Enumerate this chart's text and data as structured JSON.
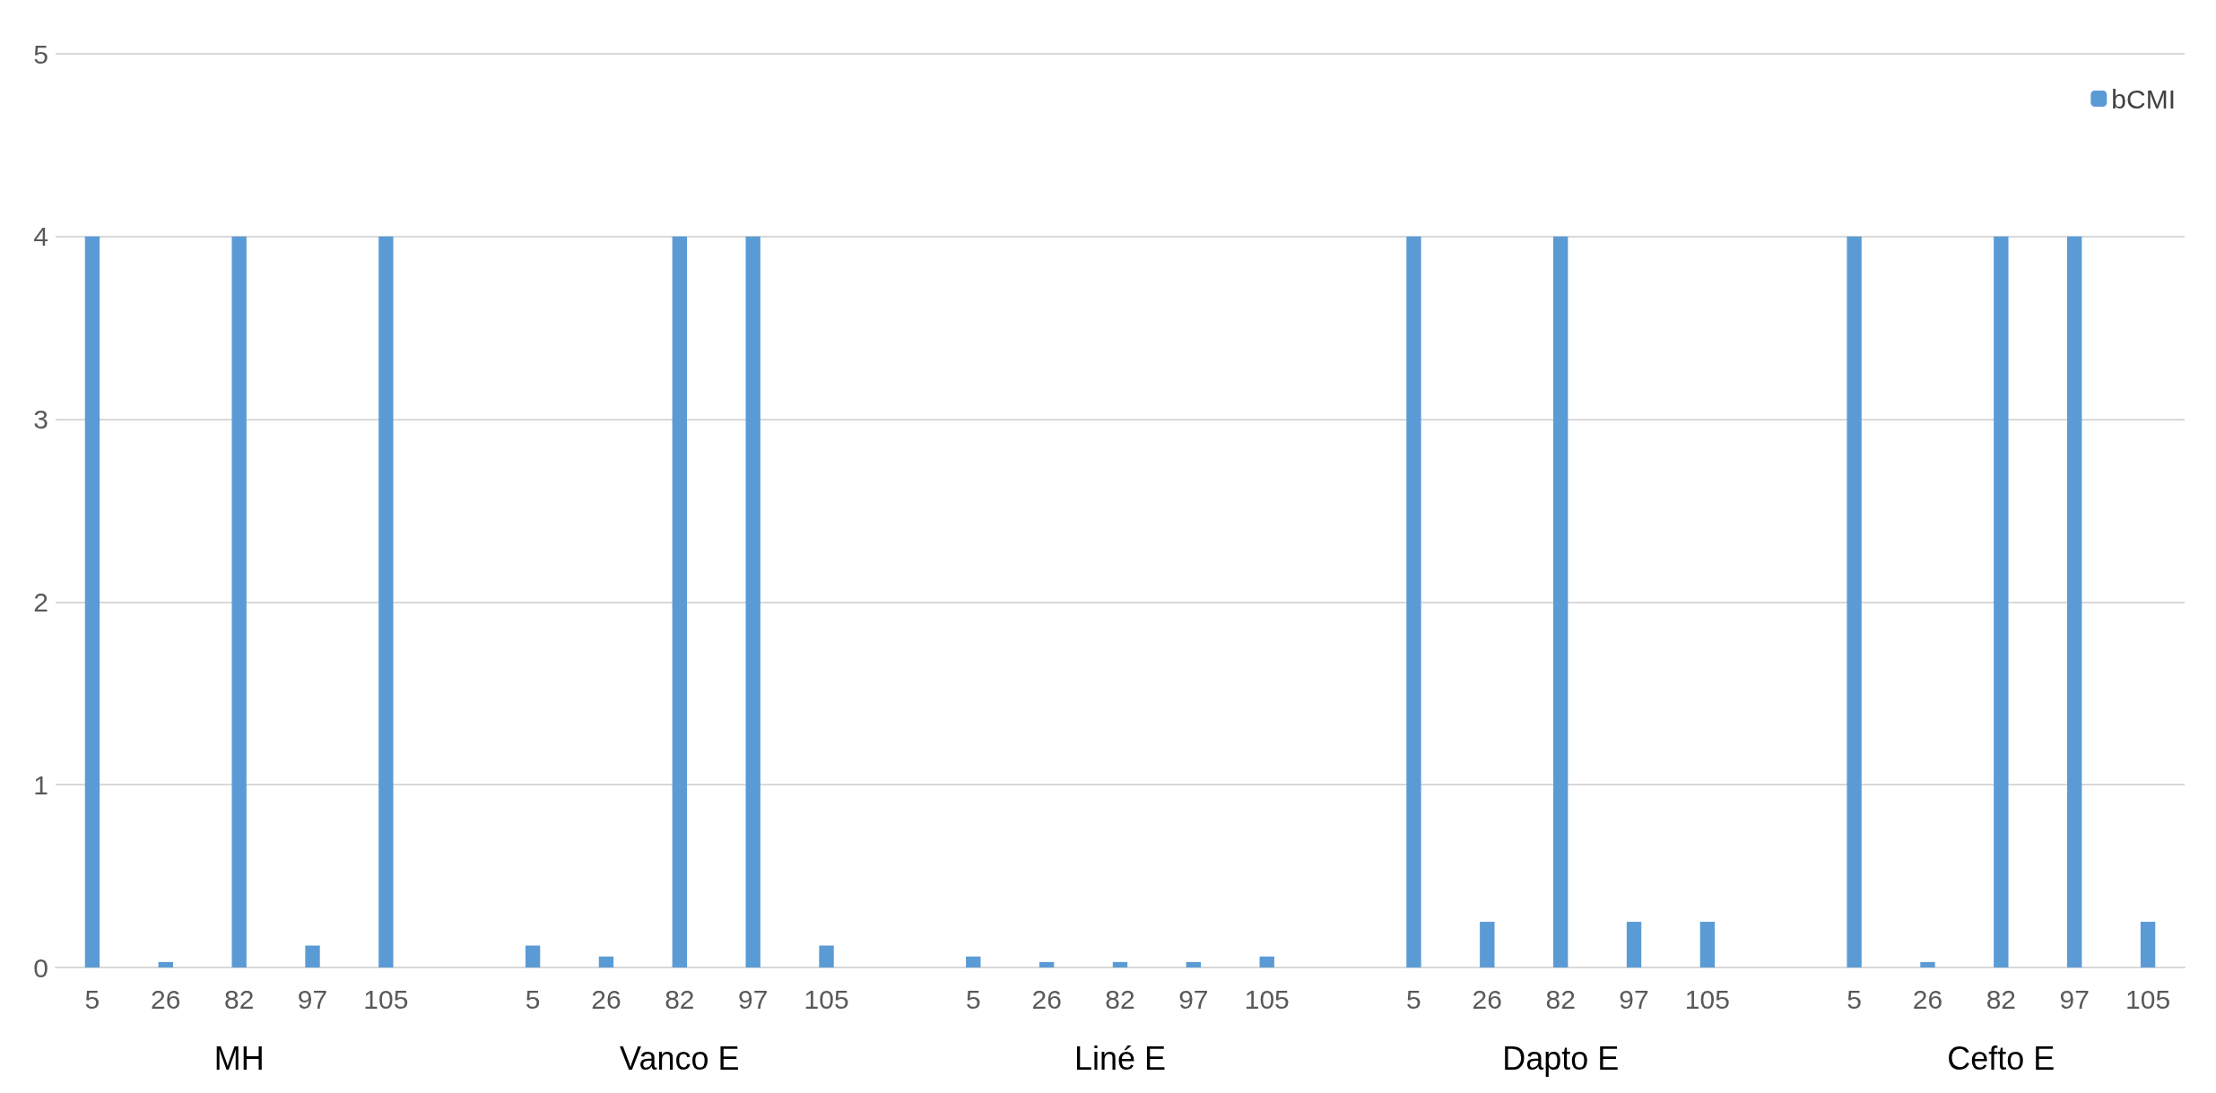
{
  "chart_data": {
    "type": "bar",
    "categories": [
      "5",
      "26",
      "82",
      "97",
      "105",
      null,
      "5",
      "26",
      "82",
      "97",
      "105",
      null,
      "5",
      "26",
      "82",
      "97",
      "105",
      null,
      "5",
      "26",
      "82",
      "97",
      "105",
      null,
      "5",
      "26",
      "82",
      "97",
      "105"
    ],
    "series": [
      {
        "name": "bCMI",
        "color": "#5b9bd5",
        "values": [
          4,
          0.03,
          4,
          0.12,
          4,
          null,
          0.12,
          0.06,
          4,
          4,
          0.12,
          null,
          0.06,
          0.03,
          0.03,
          0.03,
          0.06,
          null,
          4,
          0.25,
          4,
          0.25,
          0.25,
          null,
          4,
          0.03,
          4,
          4,
          0.25
        ]
      }
    ],
    "annotations": [
      "MH",
      "Vanco E",
      "Liné E",
      "Dapto E",
      "Cefto E"
    ],
    "ylim": [
      0,
      5
    ],
    "yticks": [
      0,
      1,
      2,
      3,
      4,
      5
    ],
    "grid": "y",
    "legend": "top right"
  }
}
